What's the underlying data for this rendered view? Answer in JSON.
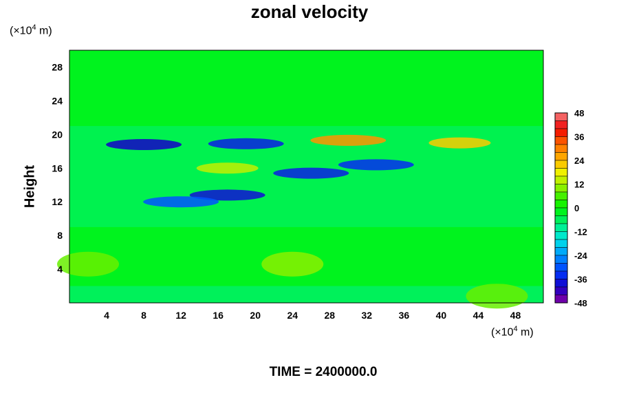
{
  "chart_data": {
    "type": "heatmap",
    "title": "zonal velocity",
    "ylabel": "Height",
    "xlabel": "",
    "x_unit_prefix": "(×10",
    "x_unit_exp": "4",
    "x_unit_suffix": " m)",
    "y_unit_prefix": "(×10",
    "y_unit_exp": "4",
    "y_unit_suffix": " m)",
    "xlim": [
      0,
      51
    ],
    "ylim": [
      0,
      30
    ],
    "x_ticks": [
      4,
      8,
      12,
      16,
      20,
      24,
      28,
      32,
      36,
      40,
      44,
      48
    ],
    "y_ticks": [
      4,
      8,
      12,
      16,
      20,
      24,
      28
    ],
    "colorbar": {
      "min": -48,
      "max": 48,
      "step": 4,
      "ticks": [
        48,
        36,
        24,
        12,
        0,
        -12,
        -24,
        -36,
        -48
      ]
    },
    "features": [
      {
        "x": 8,
        "y": 18.8,
        "value": -40
      },
      {
        "x": 19,
        "y": 18.9,
        "value": -36
      },
      {
        "x": 33,
        "y": 16.4,
        "value": -34
      },
      {
        "x": 26,
        "y": 15.4,
        "value": -36
      },
      {
        "x": 17,
        "y": 12.8,
        "value": -38
      },
      {
        "x": 12,
        "y": 12.0,
        "value": -30
      },
      {
        "x": 30,
        "y": 19.3,
        "value": 28
      },
      {
        "x": 42,
        "y": 19.0,
        "value": 22
      },
      {
        "x": 17,
        "y": 16.0,
        "value": 14
      },
      {
        "x": 24,
        "y": 4.6,
        "value": 10
      },
      {
        "x": 2,
        "y": 4.6,
        "value": 8
      },
      {
        "x": 46,
        "y": 0.8,
        "value": 8
      }
    ],
    "footer_label": "TIME = 2400000.0"
  }
}
